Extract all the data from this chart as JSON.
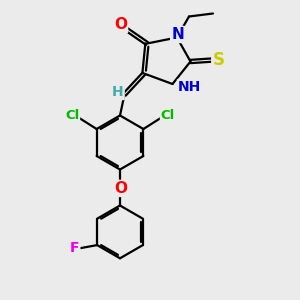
{
  "bg_color": "#ebebeb",
  "atom_colors": {
    "C": "#000000",
    "N": "#0000cc",
    "O": "#ff0000",
    "S": "#cccc00",
    "Cl": "#00bb00",
    "F": "#ee00ee",
    "H": "#44aaaa"
  },
  "bond_color": "#000000",
  "bond_width": 1.6,
  "font_size": 10,
  "fig_size": [
    3.0,
    3.0
  ],
  "dpi": 100
}
